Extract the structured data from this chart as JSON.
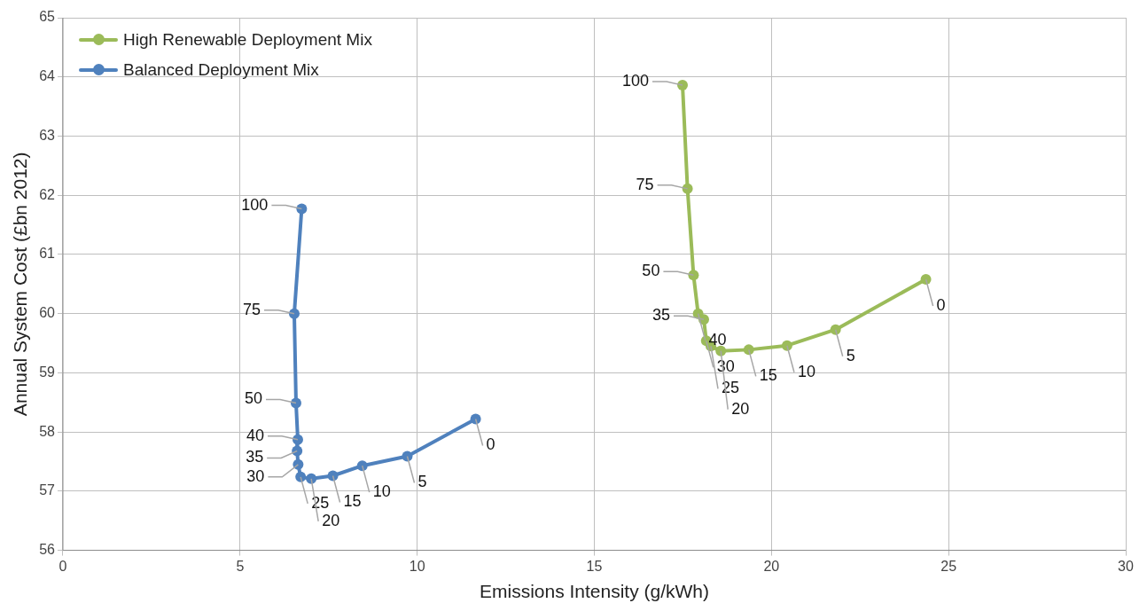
{
  "chart_data": {
    "type": "line",
    "xlabel": "Emissions Intensity (g/kWh)",
    "ylabel": "Annual System Cost (£bn 2012)",
    "xlim": [
      0,
      30
    ],
    "xticks": [
      0,
      5,
      10,
      15,
      20,
      25,
      30
    ],
    "ylim": [
      56,
      65
    ],
    "yticks": [
      56,
      57,
      58,
      59,
      60,
      61,
      62,
      63,
      64,
      65
    ],
    "grid": true,
    "legend": "top left",
    "marker": "circle",
    "line_style": "solid",
    "series": [
      {
        "name": "High Renewable Deployment Mix",
        "color": "#9bbb59",
        "x": [
          17.49,
          17.63,
          17.8,
          17.93,
          18.09,
          18.16,
          18.29,
          18.57,
          19.36,
          20.44,
          21.81,
          24.36
        ],
        "values": [
          63.86,
          62.11,
          60.65,
          60.0,
          59.9,
          59.54,
          59.45,
          59.37,
          59.39,
          59.46,
          59.73,
          60.58
        ]
      },
      {
        "name": "Balanced Deployment Mix",
        "color": "#4f81bd",
        "x": [
          6.74,
          6.53,
          6.58,
          6.63,
          6.61,
          6.64,
          6.71,
          7.01,
          7.62,
          8.45,
          9.72,
          11.65
        ],
        "values": [
          61.77,
          60.0,
          58.49,
          57.87,
          57.68,
          57.45,
          57.24,
          57.21,
          57.26,
          57.43,
          57.59,
          58.22
        ]
      }
    ],
    "annotations": [
      {
        "text": "100",
        "x": 17.49,
        "y": 63.86
      },
      {
        "text": "75",
        "x": 17.63,
        "y": 62.11
      },
      {
        "text": "50",
        "x": 17.8,
        "y": 60.65
      },
      {
        "text": "40",
        "x": 17.93,
        "y": 60.0
      },
      {
        "text": "35",
        "x": 18.09,
        "y": 59.9
      },
      {
        "text": "30",
        "x": 18.16,
        "y": 59.54
      },
      {
        "text": "25",
        "x": 18.29,
        "y": 59.45
      },
      {
        "text": "20",
        "x": 18.57,
        "y": 59.37
      },
      {
        "text": "15",
        "x": 19.36,
        "y": 59.39
      },
      {
        "text": "10",
        "x": 20.44,
        "y": 59.46
      },
      {
        "text": "5",
        "x": 21.81,
        "y": 59.73
      },
      {
        "text": "0",
        "x": 24.36,
        "y": 60.58
      },
      {
        "text": "100",
        "x": 6.74,
        "y": 61.77
      },
      {
        "text": "75",
        "x": 6.53,
        "y": 60.0
      },
      {
        "text": "50",
        "x": 6.58,
        "y": 58.49
      },
      {
        "text": "40",
        "x": 6.63,
        "y": 57.87
      },
      {
        "text": "35",
        "x": 6.61,
        "y": 57.68
      },
      {
        "text": "30",
        "x": 6.64,
        "y": 57.45
      },
      {
        "text": "25",
        "x": 6.71,
        "y": 57.24
      },
      {
        "text": "20",
        "x": 7.01,
        "y": 57.21
      },
      {
        "text": "15",
        "x": 7.62,
        "y": 57.26
      },
      {
        "text": "10",
        "x": 8.45,
        "y": 57.43
      },
      {
        "text": "5",
        "x": 9.72,
        "y": 57.59
      },
      {
        "text": "0",
        "x": 11.65,
        "y": 58.22
      }
    ]
  }
}
